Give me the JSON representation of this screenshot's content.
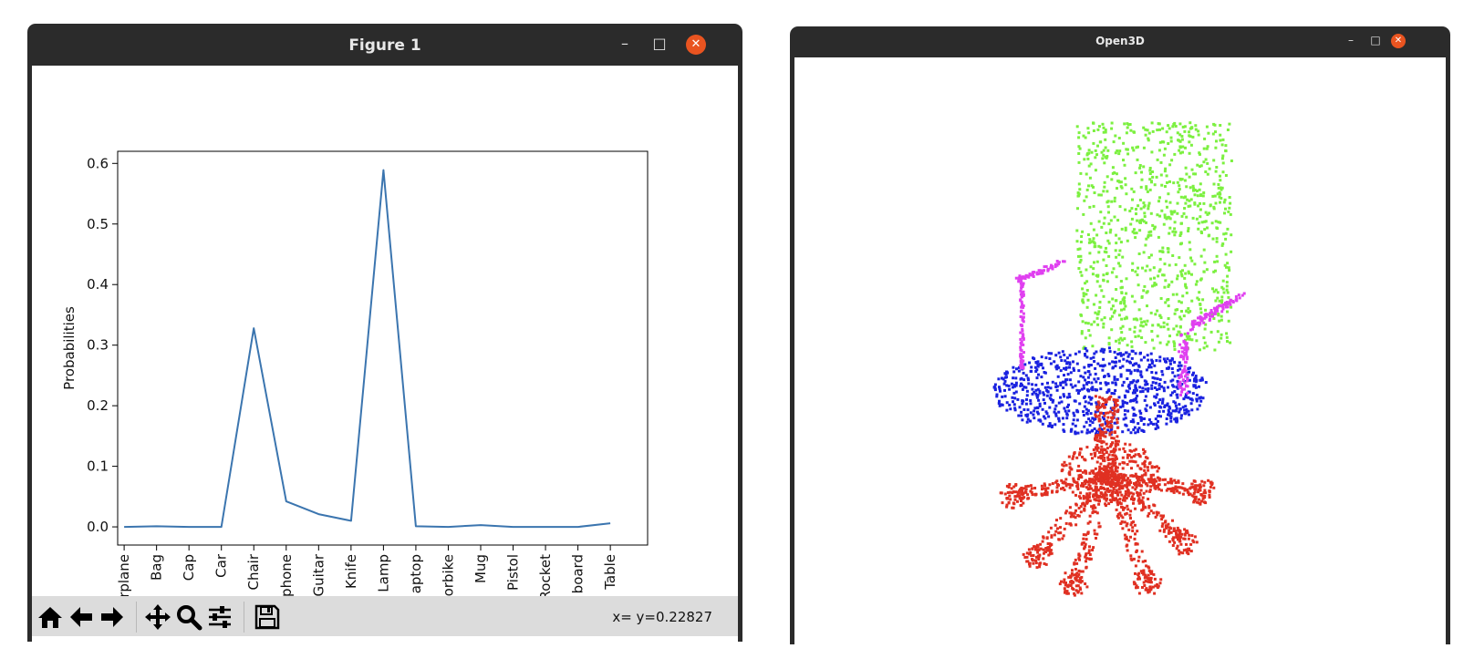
{
  "figure_window": {
    "title": "Figure 1",
    "minimize": "–",
    "maximize": "□",
    "close": "✕",
    "coord_readout": "x= y=0.22827",
    "toolbar": [
      {
        "name": "home-icon"
      },
      {
        "name": "back-arrow-icon"
      },
      {
        "name": "forward-arrow-icon"
      },
      {
        "name": "pan-icon"
      },
      {
        "name": "zoom-icon"
      },
      {
        "name": "configure-subplots-icon"
      },
      {
        "name": "save-icon"
      }
    ]
  },
  "chart_data": {
    "type": "line",
    "title": "",
    "xlabel": "",
    "ylabel": "Probabilities",
    "categories": [
      "Airplane",
      "Bag",
      "Cap",
      "Car",
      "Chair",
      "Earphone",
      "Guitar",
      "Knife",
      "Lamp",
      "Laptop",
      "Motorbike",
      "Mug",
      "Pistol",
      "Rocket",
      "Skateboard",
      "Table"
    ],
    "visible_tick_labels": [
      "rplane",
      "Bag",
      "Cap",
      "Car",
      "Chair",
      "phone",
      "Guitar",
      "Knife",
      "Lamp",
      "aptop",
      "orbike",
      "Mug",
      "Pistol",
      "Rocket",
      "board",
      "Table"
    ],
    "values": [
      0.0,
      0.001,
      0.0,
      0.0,
      0.328,
      0.042,
      0.021,
      0.01,
      0.589,
      0.001,
      0.0,
      0.003,
      0.0,
      0.0,
      0.0,
      0.006
    ],
    "ylim": [
      -0.03,
      0.62
    ],
    "yticks": [
      0.0,
      0.1,
      0.2,
      0.3,
      0.4,
      0.5,
      0.6
    ],
    "ytick_labels": [
      "0.0",
      "0.1",
      "0.2",
      "0.3",
      "0.4",
      "0.5",
      "0.6"
    ],
    "grid": false,
    "line_color": "#3b75af"
  },
  "open3d_window": {
    "title": "Open3D",
    "minimize": "–",
    "maximize": "□",
    "close": "✕",
    "segment_colors": {
      "backrest": "#7cf040",
      "armrests": "#e040f0",
      "seat": "#1a22e0",
      "base": "#e03022"
    }
  }
}
